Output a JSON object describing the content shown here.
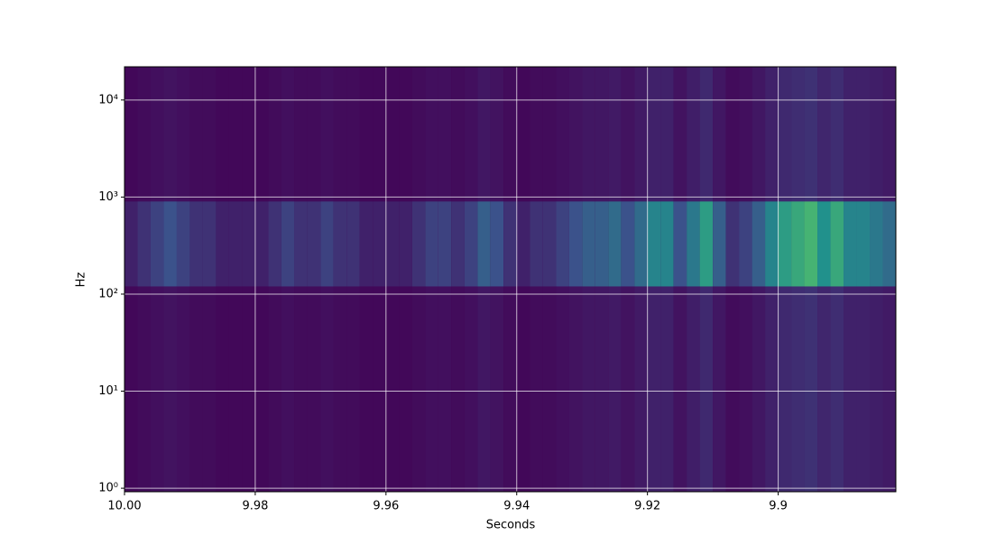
{
  "chart_data": {
    "type": "spectrogram",
    "xlabel": "Seconds",
    "ylabel": "Hz",
    "x": [
      10.0,
      9.998,
      9.996,
      9.994,
      9.992,
      9.99,
      9.988,
      9.986,
      9.984,
      9.982,
      9.98,
      9.978,
      9.976,
      9.974,
      9.972,
      9.97,
      9.968,
      9.966,
      9.964,
      9.962,
      9.96,
      9.958,
      9.956,
      9.954,
      9.952,
      9.95,
      9.948,
      9.946,
      9.944,
      9.942,
      9.94,
      9.938,
      9.936,
      9.934,
      9.932,
      9.93,
      9.928,
      9.926,
      9.924,
      9.922,
      9.92,
      9.918,
      9.916,
      9.914,
      9.912,
      9.91,
      9.908,
      9.906,
      9.904,
      9.902,
      9.9,
      9.898,
      9.896,
      9.894,
      9.892,
      9.89,
      9.888,
      9.886,
      9.884
    ],
    "values": [
      0.1,
      0.15,
      0.2,
      0.25,
      0.2,
      0.15,
      0.15,
      0.1,
      0.1,
      0.1,
      0.1,
      0.15,
      0.2,
      0.15,
      0.15,
      0.2,
      0.15,
      0.15,
      0.1,
      0.1,
      0.1,
      0.1,
      0.15,
      0.2,
      0.2,
      0.15,
      0.2,
      0.3,
      0.25,
      0.15,
      0.1,
      0.15,
      0.15,
      0.2,
      0.25,
      0.3,
      0.3,
      0.35,
      0.25,
      0.35,
      0.45,
      0.45,
      0.25,
      0.4,
      0.55,
      0.3,
      0.15,
      0.2,
      0.3,
      0.45,
      0.55,
      0.6,
      0.65,
      0.5,
      0.6,
      0.45,
      0.45,
      0.4,
      0.35
    ],
    "band_hz": [
      120,
      900
    ],
    "xlim": [
      10.0,
      9.882
    ],
    "xticks": [
      {
        "value": 10.0,
        "label": "10.00"
      },
      9.98,
      9.96,
      9.94,
      9.92,
      9.9
    ],
    "ylim": [
      0.92,
      22000
    ],
    "yscale": "log",
    "yticks": [
      {
        "value": 1,
        "label": "10⁰"
      },
      {
        "value": 10,
        "label": "10¹"
      },
      {
        "value": 100,
        "label": "10²"
      },
      {
        "value": 1000,
        "label": "10³"
      },
      {
        "value": 10000,
        "label": "10⁴"
      }
    ],
    "grid": true
  }
}
